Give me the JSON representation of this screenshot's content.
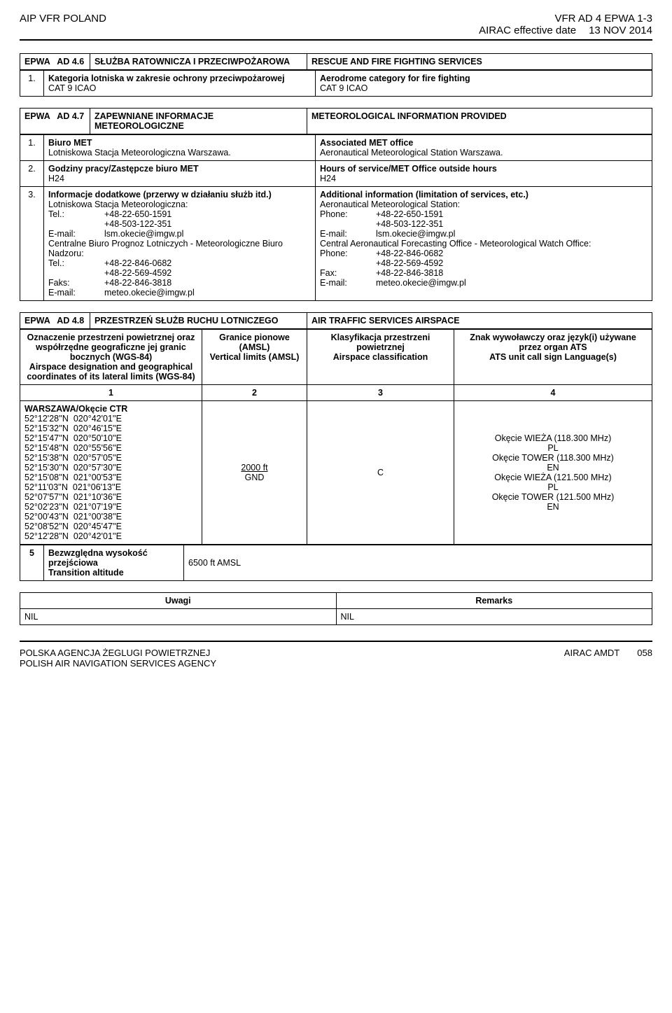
{
  "header": {
    "left": "AIP VFR POLAND",
    "right_line1": "VFR AD 4 EPWA 1-3",
    "right_line2a": "AIRAC effective date",
    "right_line2b": "13 NOV 2014"
  },
  "section46": {
    "code": "EPWA   AD 4.6",
    "title_pl": "SŁUŻBA RATOWNICZA I PRZECIWPOŻAROWA",
    "title_en": "RESCUE AND FIRE FIGHTING SERVICES",
    "row1": {
      "num": "1.",
      "pl_title": "Kategoria lotniska w zakresie ochrony przeciwpożarowej",
      "pl_val": "CAT 9 ICAO",
      "en_title": "Aerodrome category for fire fighting",
      "en_val": "CAT 9 ICAO"
    }
  },
  "section47": {
    "code": "EPWA   AD 4.7",
    "title_pl": "ZAPEWNIANE INFORMACJE METEOROLOGICZNE",
    "title_en": "METEOROLOGICAL INFORMATION PROVIDED",
    "row1": {
      "num": "1.",
      "pl_title": "Biuro MET",
      "pl_val": "Lotniskowa Stacja Meteorologiczna Warszawa.",
      "en_title": "Associated MET office",
      "en_val": "Aeronautical Meteorological Station Warszawa."
    },
    "row2": {
      "num": "2.",
      "pl_title": "Godziny pracy/Zastępcze biuro MET",
      "pl_val": "H24",
      "en_title": "Hours of service/MET Office outside hours",
      "en_val": "H24"
    },
    "row3": {
      "num": "3.",
      "pl_title": "Informacje dodatkowe (przerwy w działaniu służb itd.)",
      "en_title": "Additional information (limitation of services, etc.)",
      "pl_block_intro": "Lotniskowa Stacja Meteorologiczna:",
      "en_block_intro": "Aeronautical Meteorological Station:",
      "tel_label_pl": "Tel.:",
      "tel_label_en": "Phone:",
      "tel1": "+48-22-650-1591",
      "tel2": "+48-503-122-351",
      "email_label": "E-mail:",
      "email1": "lsm.okecie@imgw.pl",
      "cb_pl": "Centralne Biuro Prognoz Lotniczych - Meteorologiczne Biuro Nadzoru:",
      "cb_en": "Central Aeronautical Forecasting Office - Meteorological Watch Office:",
      "tel3": "+48-22-846-0682",
      "tel4": "+48-22-569-4592",
      "fax_label_pl": "Faks:",
      "fax_label_en": "Fax:",
      "fax": "+48-22-846-3818",
      "email2": "meteo.okecie@imgw.pl"
    }
  },
  "section48": {
    "code": "EPWA   AD 4.8",
    "title_pl": "PRZESTRZEŃ SŁUŻB RUCHU LOTNICZEGO",
    "title_en": "AIR TRAFFIC SERVICES AIRSPACE",
    "headers": {
      "h1_pl": "Oznaczenie przestrzeni powietrznej oraz współrzędne geograficzne jej granic bocznych (WGS-84)",
      "h1_en": "Airspace designation and geographical coordinates of its lateral limits (WGS-84)",
      "h2_pl": "Granice pionowe (AMSL)",
      "h2_en": "Vertical limits (AMSL)",
      "h3_pl": "Klasyfikacja przestrzeni powietrznej",
      "h3_en": "Airspace classification",
      "h4_pl": "Znak wywoławczy oraz język(i) używane przez organ ATS",
      "h4_en": "ATS unit call sign Language(s)",
      "n1": "1",
      "n2": "2",
      "n3": "3",
      "n4": "4"
    },
    "ctr_name": "WARSZAWA/Okęcie CTR",
    "coords": [
      "52°12'28''N  020°42'01''E",
      "52°15'32''N  020°46'15''E",
      "52°15'47''N  020°50'10''E",
      "52°15'48''N  020°55'56''E",
      "52°15'38''N  020°57'05''E",
      "52°15'30''N  020°57'30''E",
      "52°15'08''N  021°00'53''E",
      "52°11'03''N  021°06'13''E",
      "52°07'57''N  021°10'36''E",
      "52°02'23''N  021°07'19''E",
      "52°00'43''N  021°00'38''E",
      "52°08'52''N  020°45'47''E",
      "52°12'28''N  020°42'01''E"
    ],
    "vlimits_top": "2000 ft",
    "vlimits_bot": "GND",
    "class": "C",
    "callsigns": [
      "Okęcie WIEŻA (118.300 MHz)",
      "PL",
      "Okęcie TOWER (118.300 MHz)",
      "EN",
      "Okęcie WIEŻA (121.500 MHz)",
      "PL",
      "Okęcie TOWER (121.500 MHz)",
      "EN"
    ],
    "row5": {
      "num": "5",
      "label_pl": "Bezwzględna wysokość przejściowa",
      "label_en": "Transition altitude",
      "val": "6500 ft AMSL"
    },
    "remarks": {
      "h_pl": "Uwagi",
      "h_en": "Remarks",
      "nil": "NIL"
    }
  },
  "footer": {
    "left1": "POLSKA AGENCJA ŻEGLUGI POWIETRZNEJ",
    "left2": "POLISH AIR NAVIGATION SERVICES AGENCY",
    "right1": "AIRAC AMDT",
    "right2": "058"
  }
}
